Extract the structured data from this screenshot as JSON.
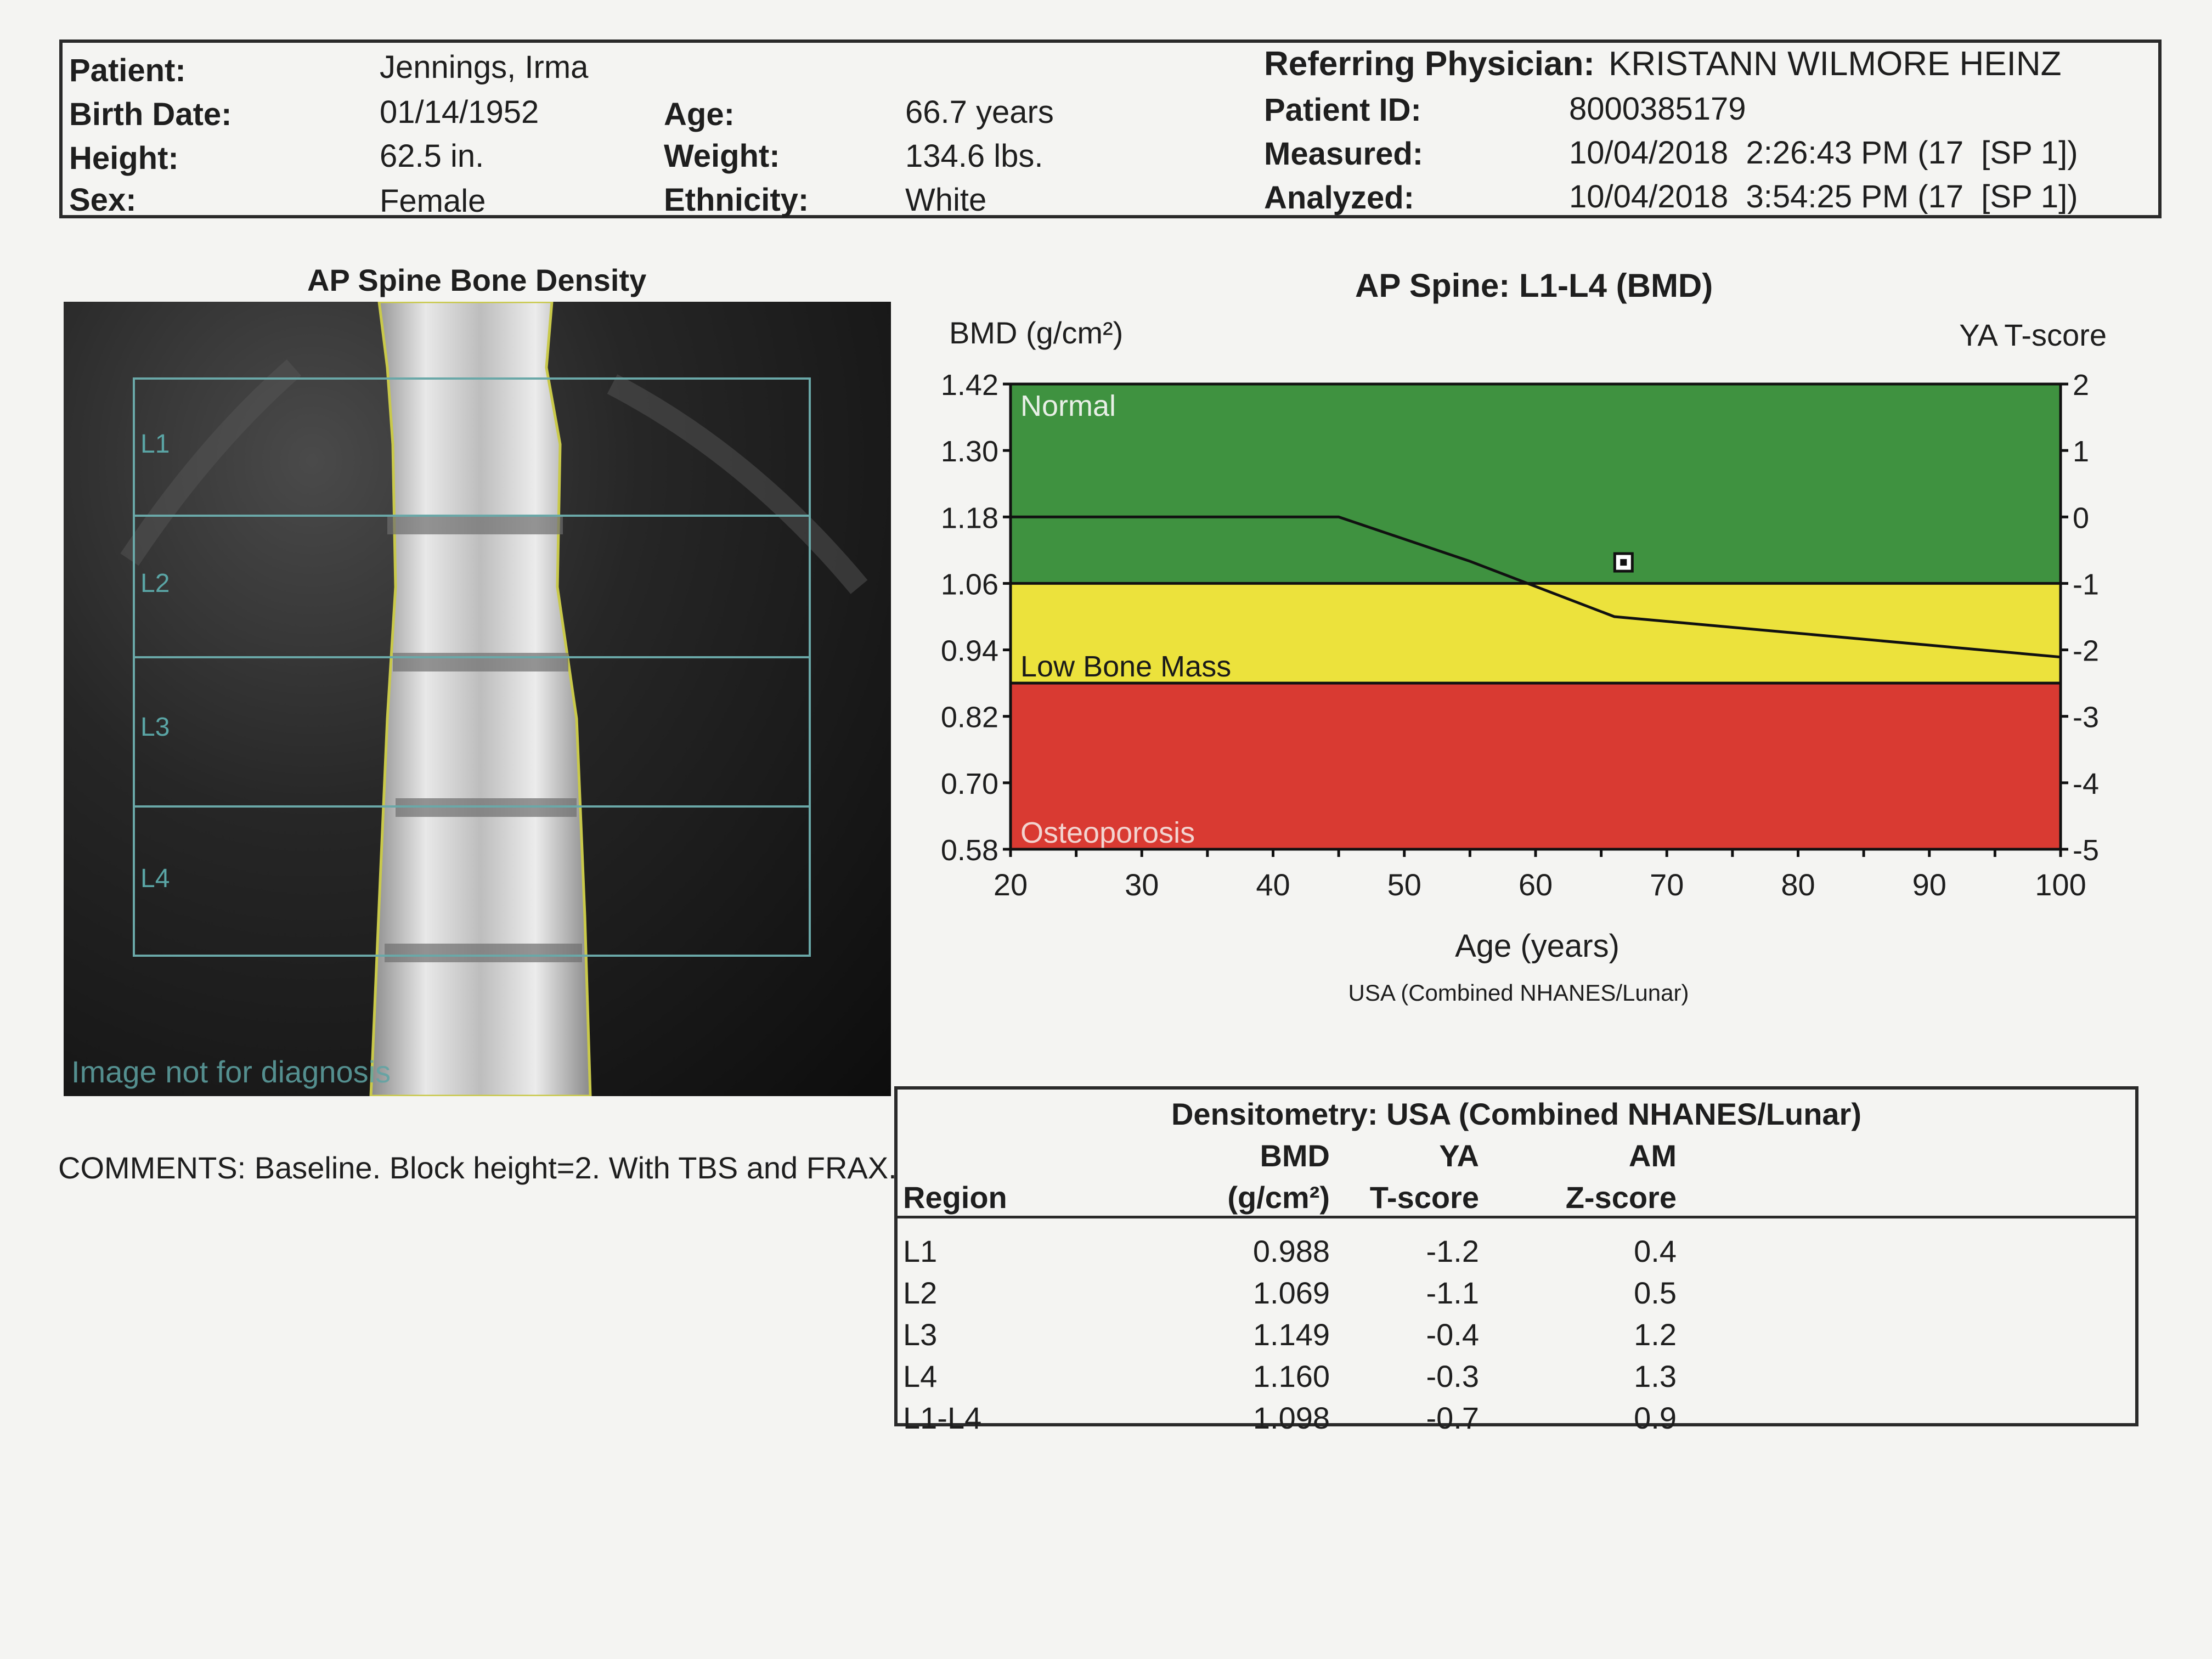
{
  "header": {
    "patient_label": "Patient:",
    "patient": "Jennings, Irma",
    "birth_date_label": "Birth Date:",
    "birth_date": "01/14/1952",
    "height_label": "Height:",
    "height": "62.5 in.",
    "sex_label": "Sex:",
    "sex": "Female",
    "age_label": "Age:",
    "age": "66.7 years",
    "weight_label": "Weight:",
    "weight": "134.6 lbs.",
    "ethnicity_label": "Ethnicity:",
    "ethnicity": "White",
    "physician_label": "Referring Physician:",
    "physician": "KRISTANN WILMORE HEINZ",
    "patient_id_label": "Patient ID:",
    "patient_id": "8000385179",
    "measured_label": "Measured:",
    "measured": "10/04/2018  2:26:43 PM (17  [SP 1])",
    "analyzed_label": "Analyzed:",
    "analyzed": "10/04/2018  3:54:25 PM (17  [SP 1])"
  },
  "spine_image": {
    "title": "AP Spine Bone Density",
    "roi_labels": [
      "L1",
      "L2",
      "L3",
      "L4"
    ],
    "watermark": "Image not for diagnosis"
  },
  "comments": "COMMENTS: Baseline. Block height=2. With TBS and FRAX.",
  "chart_data": {
    "type": "line",
    "title": "AP Spine: L1-L4 (BMD)",
    "ylabel": "BMD (g/cm²)",
    "y2label": "YA T-score",
    "xlabel": "Age (years)",
    "reference": "USA (Combined NHANES/Lunar)",
    "xlim": [
      20,
      100
    ],
    "ylim": [
      0.58,
      1.42
    ],
    "y2lim": [
      -5,
      2
    ],
    "x_ticks": [
      20,
      30,
      40,
      50,
      60,
      70,
      80,
      90,
      100
    ],
    "y_ticks": [
      1.42,
      1.3,
      1.18,
      1.06,
      0.94,
      0.82,
      0.7,
      0.58
    ],
    "y2_ticks": [
      2,
      1,
      0,
      -1,
      -2,
      -3,
      -4,
      -5
    ],
    "bands": [
      {
        "label": "Normal",
        "from": 1.06,
        "to": 1.42,
        "color": "#3f9240"
      },
      {
        "label": "Low Bone Mass",
        "from": 0.88,
        "to": 1.06,
        "color": "#ece23c"
      },
      {
        "label": "Osteoporosis",
        "from": 0.58,
        "to": 0.88,
        "color": "#d93a32"
      }
    ],
    "series": [
      {
        "x": [
          20,
          45,
          55,
          66,
          100
        ],
        "y": [
          1.18,
          1.18,
          1.1,
          1.0,
          0.927
        ],
        "color": "#111111"
      }
    ],
    "patient_point": {
      "x": 66.7,
      "y": 1.098
    }
  },
  "table": {
    "title": "Densitometry: USA (Combined NHANES/Lunar)",
    "headers": {
      "region": "Region",
      "bmd_top": "BMD",
      "bmd_bottom": "(g/cm²)",
      "ya_top": "YA",
      "ya_bottom": "T-score",
      "am_top": "AM",
      "am_bottom": "Z-score"
    },
    "rows": [
      {
        "region": "L1",
        "bmd": "0.988",
        "t": "-1.2",
        "z": "0.4"
      },
      {
        "region": "L2",
        "bmd": "1.069",
        "t": "-1.1",
        "z": "0.5"
      },
      {
        "region": "L3",
        "bmd": "1.149",
        "t": "-0.4",
        "z": "1.2"
      },
      {
        "region": "L4",
        "bmd": "1.160",
        "t": "-0.3",
        "z": "1.3"
      },
      {
        "region": "L1-L4",
        "bmd": "1.098",
        "t": "-0.7",
        "z": "0.9"
      }
    ]
  }
}
